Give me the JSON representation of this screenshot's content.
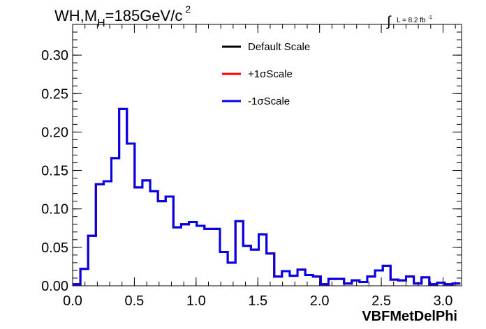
{
  "chart_data": {
    "type": "line",
    "title": "WH,M_H=185GeV/c^2",
    "title_parts": {
      "main": "WH,M",
      "sub": "H",
      "rest": "=185GeV/c",
      "sup": "2"
    },
    "lumi_label": {
      "integral": "∫",
      "text": "L = 8.2 fb",
      "sup": "-1"
    },
    "xlabel": "VBFMetDelPhi",
    "ylabel": "",
    "xlim": [
      0.0,
      3.15
    ],
    "ylim": [
      0.0,
      0.34
    ],
    "x_ticks": [
      "0.0",
      "0.5",
      "1.0",
      "1.5",
      "2.0",
      "2.5",
      "3.0"
    ],
    "x_tick_values": [
      0.0,
      0.5,
      1.0,
      1.5,
      2.0,
      2.5,
      3.0
    ],
    "y_ticks": [
      "0.00",
      "0.05",
      "0.10",
      "0.15",
      "0.20",
      "0.25",
      "0.30"
    ],
    "y_tick_values": [
      0.0,
      0.05,
      0.1,
      0.15,
      0.2,
      0.25,
      0.3
    ],
    "grid": false,
    "legend_position": "top-center",
    "bin_width": 0.0628,
    "series": [
      {
        "name": "Default Scale",
        "color": "#000000",
        "values": [
          0.002,
          0.022,
          0.065,
          0.132,
          0.136,
          0.166,
          0.23,
          0.185,
          0.128,
          0.137,
          0.123,
          0.11,
          0.116,
          0.076,
          0.08,
          0.083,
          0.078,
          0.074,
          0.074,
          0.044,
          0.03,
          0.084,
          0.052,
          0.047,
          0.067,
          0.042,
          0.012,
          0.019,
          0.013,
          0.021,
          0.014,
          0.012,
          0.002,
          0.009,
          0.009,
          0.003,
          0.007,
          0.005,
          0.012,
          0.02,
          0.026,
          0.008,
          0.007,
          0.012,
          0.003,
          0.011,
          0.002,
          0.004,
          0.002,
          0.003
        ]
      },
      {
        "name": "+1σScale",
        "color": "#ff0000",
        "values": [
          0.002,
          0.022,
          0.065,
          0.132,
          0.136,
          0.166,
          0.23,
          0.185,
          0.128,
          0.137,
          0.123,
          0.11,
          0.116,
          0.076,
          0.08,
          0.083,
          0.078,
          0.074,
          0.074,
          0.044,
          0.03,
          0.084,
          0.052,
          0.047,
          0.067,
          0.042,
          0.012,
          0.019,
          0.013,
          0.021,
          0.014,
          0.012,
          0.002,
          0.009,
          0.009,
          0.003,
          0.007,
          0.005,
          0.012,
          0.02,
          0.026,
          0.008,
          0.007,
          0.012,
          0.003,
          0.011,
          0.002,
          0.004,
          0.002,
          0.003
        ]
      },
      {
        "name": "-1σScale",
        "color": "#0000ee",
        "values": [
          0.002,
          0.022,
          0.065,
          0.132,
          0.136,
          0.166,
          0.23,
          0.185,
          0.128,
          0.137,
          0.123,
          0.11,
          0.116,
          0.076,
          0.08,
          0.083,
          0.078,
          0.074,
          0.074,
          0.044,
          0.03,
          0.084,
          0.052,
          0.047,
          0.067,
          0.042,
          0.012,
          0.019,
          0.013,
          0.021,
          0.014,
          0.012,
          0.002,
          0.009,
          0.009,
          0.003,
          0.007,
          0.005,
          0.012,
          0.02,
          0.026,
          0.008,
          0.007,
          0.012,
          0.003,
          0.011,
          0.002,
          0.004,
          0.002,
          0.003
        ]
      }
    ]
  }
}
